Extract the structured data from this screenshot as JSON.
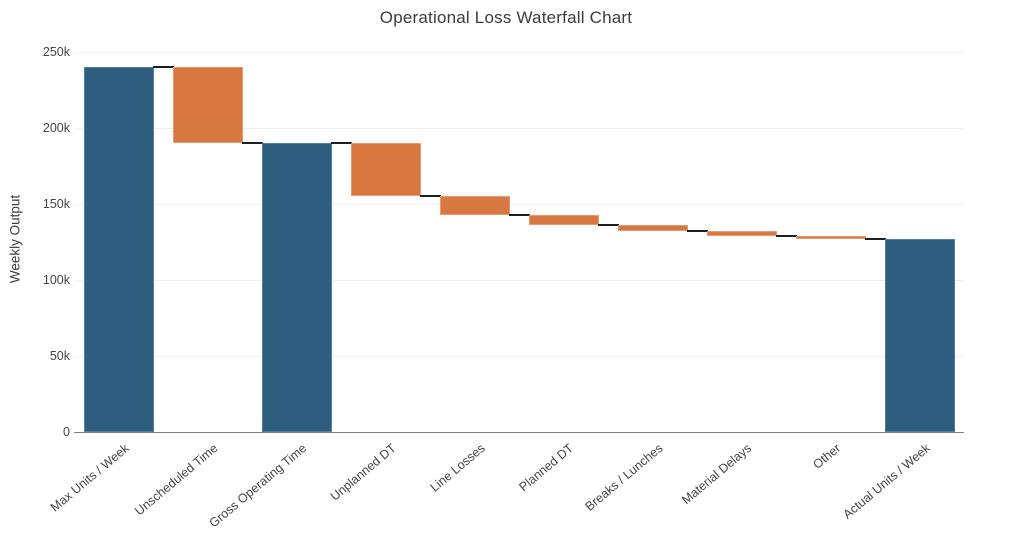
{
  "chart_data": {
    "type": "waterfall",
    "title": "Operational Loss Waterfall Chart",
    "xlabel": "",
    "ylabel": "Weekly Output",
    "ylim": [
      0,
      253000
    ],
    "grid": true,
    "legend": false,
    "y_ticks": [
      {
        "value": 0,
        "label": "0"
      },
      {
        "value": 50000,
        "label": "50k"
      },
      {
        "value": 100000,
        "label": "100k"
      },
      {
        "value": 150000,
        "label": "150k"
      },
      {
        "value": 200000,
        "label": "200k"
      },
      {
        "value": 250000,
        "label": "250k"
      }
    ],
    "categories": [
      "Max Units / Week",
      "Unscheduled Time",
      "Gross Operating Time",
      "Unplanned DT",
      "Line Losses",
      "Planned DT",
      "Breaks / Lunches",
      "Material Delays",
      "Other",
      "Actual Units / Week"
    ],
    "bars": [
      {
        "label": "Max Units / Week",
        "measure": "absolute",
        "value": 240000,
        "running_total": 240000,
        "role": "total"
      },
      {
        "label": "Unscheduled Time",
        "measure": "relative",
        "value": -50000,
        "running_total": 190000,
        "role": "decrease"
      },
      {
        "label": "Gross Operating Time",
        "measure": "total",
        "value": 190000,
        "running_total": 190000,
        "role": "total"
      },
      {
        "label": "Unplanned DT",
        "measure": "relative",
        "value": -35000,
        "running_total": 155000,
        "role": "decrease"
      },
      {
        "label": "Line Losses",
        "measure": "relative",
        "value": -12000,
        "running_total": 143000,
        "role": "decrease"
      },
      {
        "label": "Planned DT",
        "measure": "relative",
        "value": -7000,
        "running_total": 136000,
        "role": "decrease"
      },
      {
        "label": "Breaks / Lunches",
        "measure": "relative",
        "value": -4000,
        "running_total": 132000,
        "role": "decrease"
      },
      {
        "label": "Material Delays",
        "measure": "relative",
        "value": -3000,
        "running_total": 129000,
        "role": "decrease"
      },
      {
        "label": "Other",
        "measure": "relative",
        "value": -2000,
        "running_total": 127000,
        "role": "decrease"
      },
      {
        "label": "Actual Units / Week",
        "measure": "total",
        "value": 127000,
        "running_total": 127000,
        "role": "total"
      }
    ]
  },
  "colors": {
    "total_bar": "#2e5d80",
    "total_bar_border": "#55809c",
    "loss_bar": "#d77841",
    "loss_bar_border": "#e29a6e",
    "connector": "#1e1e1e",
    "gridline": "#f0f0f0",
    "axis_line": "#7f7f7f",
    "tick_text": "#444444",
    "title_text": "#3c3c3c",
    "background": "#ffffff"
  }
}
